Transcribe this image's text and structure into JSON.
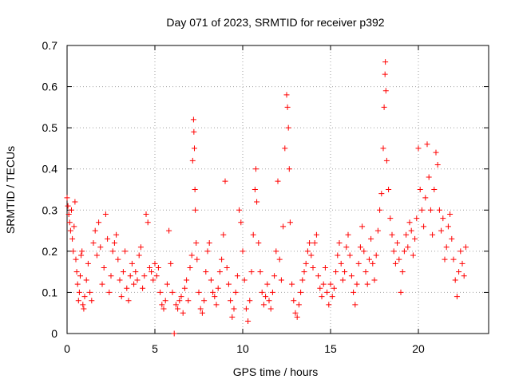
{
  "chart_data": {
    "type": "scatter",
    "title": "Day 071 of 2023, SRMTID for receiver p392",
    "xlabel": "GPS time / hours",
    "ylabel": "SRMTID / TECUs",
    "xlim": [
      0,
      24
    ],
    "ylim": [
      0,
      0.7
    ],
    "xticks": [
      0,
      5,
      10,
      15,
      20
    ],
    "yticks": [
      0,
      0.1,
      0.2,
      0.3,
      0.4,
      0.5,
      0.6,
      0.7
    ],
    "grid": true,
    "marker": "plus",
    "color": "#ff0000",
    "series": [
      {
        "name": "SRMTID",
        "points": [
          [
            0.0,
            0.33
          ],
          [
            0.05,
            0.31
          ],
          [
            0.1,
            0.29
          ],
          [
            0.15,
            0.27
          ],
          [
            0.2,
            0.25
          ],
          [
            0.25,
            0.3
          ],
          [
            0.3,
            0.23
          ],
          [
            0.35,
            0.2
          ],
          [
            0.4,
            0.26
          ],
          [
            0.45,
            0.32
          ],
          [
            0.5,
            0.18
          ],
          [
            0.55,
            0.15
          ],
          [
            0.6,
            0.12
          ],
          [
            0.65,
            0.08
          ],
          [
            0.7,
            0.1
          ],
          [
            0.75,
            0.14
          ],
          [
            0.8,
            0.19
          ],
          [
            0.85,
            0.2
          ],
          [
            0.9,
            0.07
          ],
          [
            0.95,
            0.06
          ],
          [
            1.0,
            0.09
          ],
          [
            1.1,
            0.13
          ],
          [
            1.2,
            0.17
          ],
          [
            1.3,
            0.1
          ],
          [
            1.4,
            0.08
          ],
          [
            1.5,
            0.22
          ],
          [
            1.6,
            0.25
          ],
          [
            1.7,
            0.19
          ],
          [
            1.8,
            0.27
          ],
          [
            1.9,
            0.21
          ],
          [
            2.0,
            0.12
          ],
          [
            2.1,
            0.16
          ],
          [
            2.2,
            0.29
          ],
          [
            2.3,
            0.23
          ],
          [
            2.4,
            0.1
          ],
          [
            2.5,
            0.14
          ],
          [
            2.6,
            0.2
          ],
          [
            2.7,
            0.22
          ],
          [
            2.8,
            0.24
          ],
          [
            2.9,
            0.18
          ],
          [
            3.0,
            0.13
          ],
          [
            3.1,
            0.09
          ],
          [
            3.2,
            0.15
          ],
          [
            3.3,
            0.2
          ],
          [
            3.4,
            0.11
          ],
          [
            3.5,
            0.08
          ],
          [
            3.6,
            0.14
          ],
          [
            3.7,
            0.17
          ],
          [
            3.8,
            0.12
          ],
          [
            3.9,
            0.15
          ],
          [
            4.0,
            0.13
          ],
          [
            4.1,
            0.19
          ],
          [
            4.2,
            0.21
          ],
          [
            4.3,
            0.11
          ],
          [
            4.4,
            0.14
          ],
          [
            4.5,
            0.29
          ],
          [
            4.6,
            0.27
          ],
          [
            4.7,
            0.16
          ],
          [
            4.8,
            0.15
          ],
          [
            4.9,
            0.13
          ],
          [
            5.0,
            0.17
          ],
          [
            5.1,
            0.14
          ],
          [
            5.2,
            0.16
          ],
          [
            5.3,
            0.1
          ],
          [
            5.4,
            0.07
          ],
          [
            5.5,
            0.06
          ],
          [
            5.6,
            0.08
          ],
          [
            5.7,
            0.12
          ],
          [
            5.8,
            0.25
          ],
          [
            5.9,
            0.17
          ],
          [
            6.0,
            0.1
          ],
          [
            6.1,
            0.0
          ],
          [
            6.2,
            0.07
          ],
          [
            6.3,
            0.06
          ],
          [
            6.4,
            0.08
          ],
          [
            6.5,
            0.09
          ],
          [
            6.6,
            0.05
          ],
          [
            6.7,
            0.11
          ],
          [
            6.8,
            0.13
          ],
          [
            6.9,
            0.08
          ],
          [
            7.0,
            0.16
          ],
          [
            7.1,
            0.19
          ],
          [
            7.15,
            0.42
          ],
          [
            7.2,
            0.52
          ],
          [
            7.22,
            0.49
          ],
          [
            7.25,
            0.45
          ],
          [
            7.28,
            0.35
          ],
          [
            7.3,
            0.3
          ],
          [
            7.35,
            0.22
          ],
          [
            7.4,
            0.18
          ],
          [
            7.5,
            0.1
          ],
          [
            7.6,
            0.06
          ],
          [
            7.7,
            0.05
          ],
          [
            7.8,
            0.08
          ],
          [
            7.9,
            0.15
          ],
          [
            8.0,
            0.2
          ],
          [
            8.1,
            0.22
          ],
          [
            8.2,
            0.13
          ],
          [
            8.3,
            0.1
          ],
          [
            8.4,
            0.09
          ],
          [
            8.5,
            0.07
          ],
          [
            8.6,
            0.11
          ],
          [
            8.7,
            0.15
          ],
          [
            8.8,
            0.18
          ],
          [
            8.9,
            0.24
          ],
          [
            9.0,
            0.37
          ],
          [
            9.1,
            0.16
          ],
          [
            9.2,
            0.12
          ],
          [
            9.3,
            0.08
          ],
          [
            9.4,
            0.04
          ],
          [
            9.5,
            0.06
          ],
          [
            9.6,
            0.1
          ],
          [
            9.7,
            0.14
          ],
          [
            9.8,
            0.3
          ],
          [
            9.9,
            0.27
          ],
          [
            10.0,
            0.2
          ],
          [
            10.1,
            0.13
          ],
          [
            10.2,
            0.06
          ],
          [
            10.3,
            0.03
          ],
          [
            10.4,
            0.08
          ],
          [
            10.5,
            0.15
          ],
          [
            10.6,
            0.24
          ],
          [
            10.7,
            0.35
          ],
          [
            10.75,
            0.4
          ],
          [
            10.8,
            0.32
          ],
          [
            10.9,
            0.22
          ],
          [
            11.0,
            0.15
          ],
          [
            11.1,
            0.1
          ],
          [
            11.2,
            0.07
          ],
          [
            11.3,
            0.09
          ],
          [
            11.4,
            0.12
          ],
          [
            11.5,
            0.08
          ],
          [
            11.6,
            0.06
          ],
          [
            11.7,
            0.1
          ],
          [
            11.8,
            0.14
          ],
          [
            11.9,
            0.2
          ],
          [
            12.0,
            0.37
          ],
          [
            12.1,
            0.18
          ],
          [
            12.2,
            0.13
          ],
          [
            12.3,
            0.26
          ],
          [
            12.4,
            0.45
          ],
          [
            12.5,
            0.58
          ],
          [
            12.55,
            0.55
          ],
          [
            12.6,
            0.5
          ],
          [
            12.65,
            0.4
          ],
          [
            12.7,
            0.27
          ],
          [
            12.8,
            0.12
          ],
          [
            12.9,
            0.08
          ],
          [
            13.0,
            0.05
          ],
          [
            13.1,
            0.04
          ],
          [
            13.2,
            0.07
          ],
          [
            13.3,
            0.1
          ],
          [
            13.4,
            0.13
          ],
          [
            13.5,
            0.15
          ],
          [
            13.6,
            0.17
          ],
          [
            13.7,
            0.2
          ],
          [
            13.8,
            0.22
          ],
          [
            13.9,
            0.19
          ],
          [
            14.0,
            0.16
          ],
          [
            14.1,
            0.22
          ],
          [
            14.2,
            0.24
          ],
          [
            14.3,
            0.14
          ],
          [
            14.4,
            0.11
          ],
          [
            14.5,
            0.09
          ],
          [
            14.6,
            0.12
          ],
          [
            14.7,
            0.16
          ],
          [
            14.8,
            0.1
          ],
          [
            14.9,
            0.07
          ],
          [
            15.0,
            0.12
          ],
          [
            15.1,
            0.09
          ],
          [
            15.2,
            0.11
          ],
          [
            15.3,
            0.15
          ],
          [
            15.4,
            0.19
          ],
          [
            15.5,
            0.22
          ],
          [
            15.6,
            0.17
          ],
          [
            15.7,
            0.13
          ],
          [
            15.8,
            0.15
          ],
          [
            15.9,
            0.21
          ],
          [
            16.0,
            0.24
          ],
          [
            16.1,
            0.19
          ],
          [
            16.2,
            0.14
          ],
          [
            16.3,
            0.1
          ],
          [
            16.4,
            0.07
          ],
          [
            16.5,
            0.12
          ],
          [
            16.6,
            0.17
          ],
          [
            16.7,
            0.21
          ],
          [
            16.8,
            0.26
          ],
          [
            16.9,
            0.2
          ],
          [
            17.0,
            0.15
          ],
          [
            17.1,
            0.12
          ],
          [
            17.2,
            0.18
          ],
          [
            17.3,
            0.23
          ],
          [
            17.4,
            0.17
          ],
          [
            17.5,
            0.13
          ],
          [
            17.6,
            0.19
          ],
          [
            17.7,
            0.25
          ],
          [
            17.8,
            0.3
          ],
          [
            17.9,
            0.34
          ],
          [
            18.0,
            0.45
          ],
          [
            18.05,
            0.55
          ],
          [
            18.1,
            0.63
          ],
          [
            18.12,
            0.66
          ],
          [
            18.15,
            0.59
          ],
          [
            18.2,
            0.42
          ],
          [
            18.3,
            0.35
          ],
          [
            18.4,
            0.28
          ],
          [
            18.5,
            0.24
          ],
          [
            18.6,
            0.2
          ],
          [
            18.7,
            0.17
          ],
          [
            18.8,
            0.22
          ],
          [
            18.9,
            0.18
          ],
          [
            19.0,
            0.1
          ],
          [
            19.1,
            0.15
          ],
          [
            19.2,
            0.2
          ],
          [
            19.3,
            0.24
          ],
          [
            19.4,
            0.21
          ],
          [
            19.5,
            0.27
          ],
          [
            19.6,
            0.25
          ],
          [
            19.7,
            0.19
          ],
          [
            19.8,
            0.23
          ],
          [
            19.9,
            0.28
          ],
          [
            20.0,
            0.45
          ],
          [
            20.1,
            0.35
          ],
          [
            20.2,
            0.3
          ],
          [
            20.3,
            0.26
          ],
          [
            20.4,
            0.33
          ],
          [
            20.5,
            0.46
          ],
          [
            20.6,
            0.38
          ],
          [
            20.7,
            0.3
          ],
          [
            20.8,
            0.24
          ],
          [
            20.9,
            0.35
          ],
          [
            21.0,
            0.44
          ],
          [
            21.1,
            0.41
          ],
          [
            21.2,
            0.3
          ],
          [
            21.3,
            0.25
          ],
          [
            21.4,
            0.28
          ],
          [
            21.5,
            0.18
          ],
          [
            21.6,
            0.21
          ],
          [
            21.7,
            0.26
          ],
          [
            21.8,
            0.29
          ],
          [
            21.9,
            0.23
          ],
          [
            22.0,
            0.18
          ],
          [
            22.1,
            0.13
          ],
          [
            22.2,
            0.09
          ],
          [
            22.3,
            0.15
          ],
          [
            22.4,
            0.2
          ],
          [
            22.5,
            0.17
          ],
          [
            22.6,
            0.14
          ],
          [
            22.7,
            0.21
          ]
        ]
      }
    ]
  }
}
